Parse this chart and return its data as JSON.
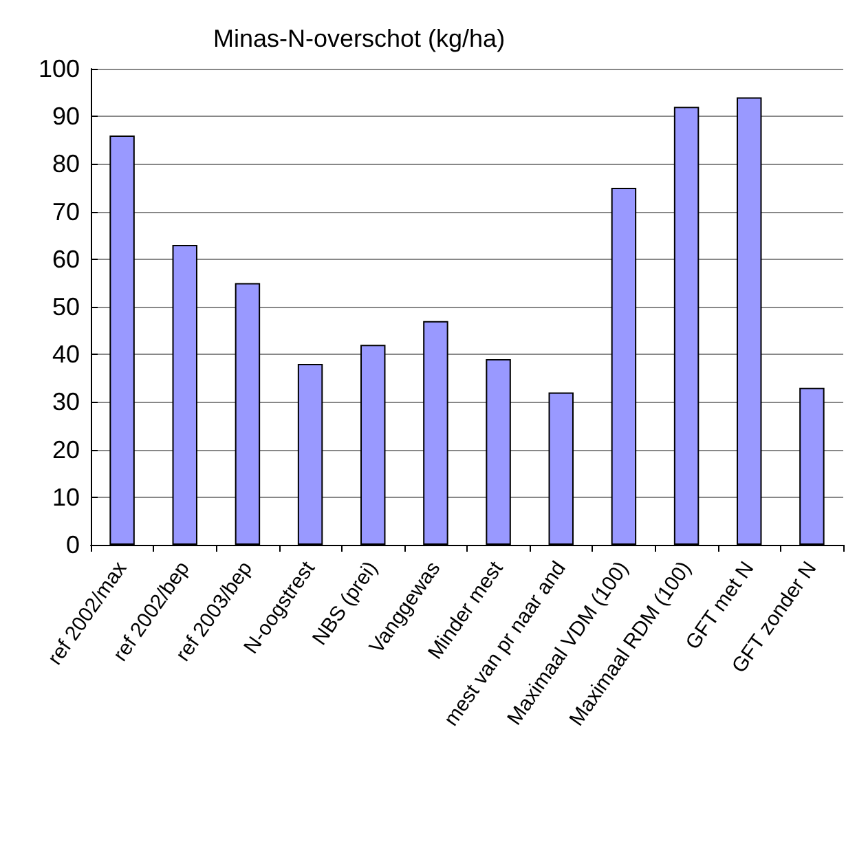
{
  "chart_data": {
    "type": "bar",
    "title": "Minas-N-overschot (kg/ha)",
    "categories": [
      "ref 2002/max",
      "ref 2002/bep",
      "ref 2003/bep",
      "N-oogstrest",
      "NBS (prei)",
      "Vanggewas",
      "Minder mest",
      "mest van pr naar and",
      "Maximaal VDM (100)",
      "Maximaal RDM (100)",
      "GFT met N",
      "GFT zonder N"
    ],
    "values": [
      86,
      63,
      55,
      38,
      42,
      47,
      39,
      32,
      75,
      92,
      94,
      33
    ],
    "color": "#9999ff",
    "ylim": [
      0,
      100
    ],
    "yticks": [
      0,
      10,
      20,
      30,
      40,
      50,
      60,
      70,
      80,
      90,
      100
    ],
    "grid": "y"
  }
}
